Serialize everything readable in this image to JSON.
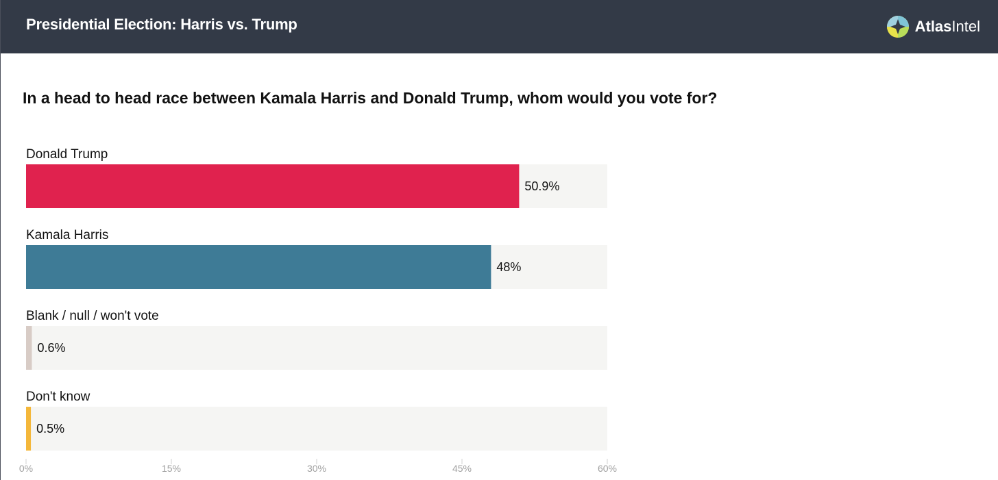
{
  "header": {
    "title": "Presidential Election: Harris vs. Trump",
    "logo": {
      "brand_bold": "Atlas",
      "brand_light": "Intel",
      "icon": "atlasintel-compass-icon"
    },
    "background_color": "#333a47"
  },
  "question": "In a head to head race between Kamala Harris and Donald Trump, whom would you vote for?",
  "chart_data": {
    "type": "bar",
    "orientation": "horizontal",
    "categories": [
      "Donald Trump",
      "Kamala Harris",
      "Blank / null / won't vote",
      "Don't know"
    ],
    "values": [
      50.9,
      48,
      0.6,
      0.5
    ],
    "value_labels": [
      "50.9%",
      "48%",
      "0.6%",
      "0.5%"
    ],
    "colors": [
      "#e0224e",
      "#3e7b96",
      "#d8ccc6",
      "#f4b73a"
    ],
    "track_color": "#f5f5f3",
    "xlim": [
      0,
      60
    ],
    "xticks": [
      0,
      15,
      30,
      45,
      60
    ],
    "xtick_labels": [
      "0%",
      "15%",
      "30%",
      "45%",
      "60%"
    ],
    "grid": false,
    "legend": "none"
  }
}
